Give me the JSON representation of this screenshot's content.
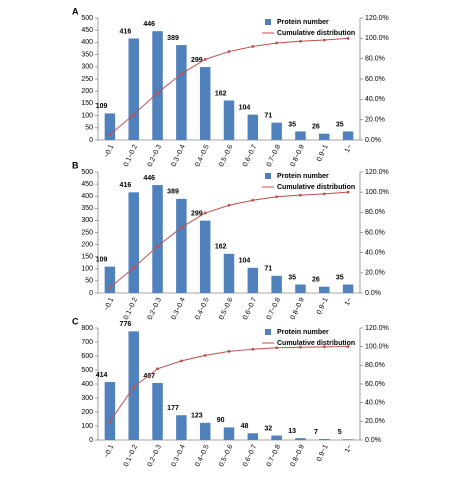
{
  "chart_data": [
    {
      "type": "bar",
      "panel_label": "A",
      "grid": false,
      "legend": "top-right",
      "categories": [
        "~0.1",
        "0.1~0.2",
        "0.2~0.3",
        "0.3~0.4",
        "0.4~0.5",
        "0.5~0.6",
        "0.6~0.7",
        "0.7~0.8",
        "0.8~0.9",
        "0.9~1",
        "1~"
      ],
      "series": [
        {
          "name": "Protein number",
          "type": "bar",
          "color": "#4f81bd",
          "values": [
            109,
            416,
            446,
            389,
            299,
            162,
            104,
            71,
            35,
            26,
            35
          ]
        },
        {
          "name": "Cumulative distribution",
          "type": "line",
          "axis": "y2",
          "color": "#c0504d",
          "values": [
            5.2,
            25.1,
            46.4,
            65.0,
            79.3,
            87.0,
            92.0,
            95.4,
            97.1,
            98.3,
            100
          ]
        }
      ],
      "ylim": [
        0,
        500
      ],
      "yticks": [
        0,
        50,
        100,
        150,
        200,
        250,
        300,
        350,
        400,
        450,
        500
      ],
      "y2lim": [
        0,
        120
      ],
      "y2ticks": [
        {
          "value": 0,
          "label": "0.0%"
        },
        {
          "value": 20,
          "label": "20.0%"
        },
        {
          "value": 40,
          "label": "40.0%"
        },
        {
          "value": 60,
          "label": "60.0%"
        },
        {
          "value": 80,
          "label": "80.0%"
        },
        {
          "value": 100,
          "label": "100.0%"
        },
        {
          "value": 120,
          "label": "120.0%"
        }
      ]
    },
    {
      "type": "bar",
      "panel_label": "B",
      "grid": false,
      "legend": "top-right",
      "categories": [
        "~0.1",
        "0.1~0.2",
        "0.2~0.3",
        "0.3~0.4",
        "0.4~0.5",
        "0.5~0.6",
        "0.6~0.7",
        "0.7~0.8",
        "0.8~0.9",
        "0.9~1",
        "1~"
      ],
      "series": [
        {
          "name": "Protein number",
          "type": "bar",
          "color": "#4f81bd",
          "values": [
            109,
            416,
            446,
            389,
            299,
            162,
            104,
            71,
            35,
            26,
            35
          ]
        },
        {
          "name": "Cumulative distribution",
          "type": "line",
          "axis": "y2",
          "color": "#c0504d",
          "values": [
            5.2,
            25.1,
            46.4,
            65.0,
            79.3,
            87.0,
            92.0,
            95.4,
            97.1,
            98.3,
            100
          ]
        }
      ],
      "ylim": [
        0,
        500
      ],
      "yticks": [
        0,
        50,
        100,
        150,
        200,
        250,
        300,
        350,
        400,
        450,
        500
      ],
      "y2lim": [
        0,
        120
      ],
      "y2ticks": [
        {
          "value": 0,
          "label": "0.0%"
        },
        {
          "value": 20,
          "label": "20.0%"
        },
        {
          "value": 40,
          "label": "40.0%"
        },
        {
          "value": 60,
          "label": "60.0%"
        },
        {
          "value": 80,
          "label": "80.0%"
        },
        {
          "value": 100,
          "label": "100.0%"
        },
        {
          "value": 120,
          "label": "120.0%"
        }
      ]
    },
    {
      "type": "bar",
      "panel_label": "C",
      "grid": false,
      "legend": "top-right",
      "categories": [
        "~0.1",
        "0.1~0.2",
        "0.2~0.3",
        "0.3~0.4",
        "0.4~0.5",
        "0.5~0.6",
        "0.6~0.7",
        "0.7~0.8",
        "0.8~0.9",
        "0.9~1",
        "1~"
      ],
      "series": [
        {
          "name": "Protein number",
          "type": "bar",
          "color": "#4f81bd",
          "values": [
            414,
            776,
            407,
            177,
            123,
            90,
            48,
            32,
            13,
            7,
            5
          ]
        },
        {
          "name": "Cumulative distribution",
          "type": "line",
          "axis": "y2",
          "color": "#c0504d",
          "values": [
            19.8,
            56.9,
            76.3,
            84.8,
            90.7,
            95.0,
            97.3,
            98.8,
            99.4,
            99.8,
            100
          ]
        }
      ],
      "ylim": [
        0,
        800
      ],
      "yticks": [
        0,
        100,
        200,
        300,
        400,
        500,
        600,
        700,
        800
      ],
      "y2lim": [
        0,
        120
      ],
      "y2ticks": [
        {
          "value": 0,
          "label": "0.0%"
        },
        {
          "value": 20,
          "label": "20.0%"
        },
        {
          "value": 40,
          "label": "40.0%"
        },
        {
          "value": 60,
          "label": "60.0%"
        },
        {
          "value": 80,
          "label": "80.0%"
        },
        {
          "value": 100,
          "label": "100.0%"
        },
        {
          "value": 120,
          "label": "120.0%"
        }
      ]
    }
  ]
}
